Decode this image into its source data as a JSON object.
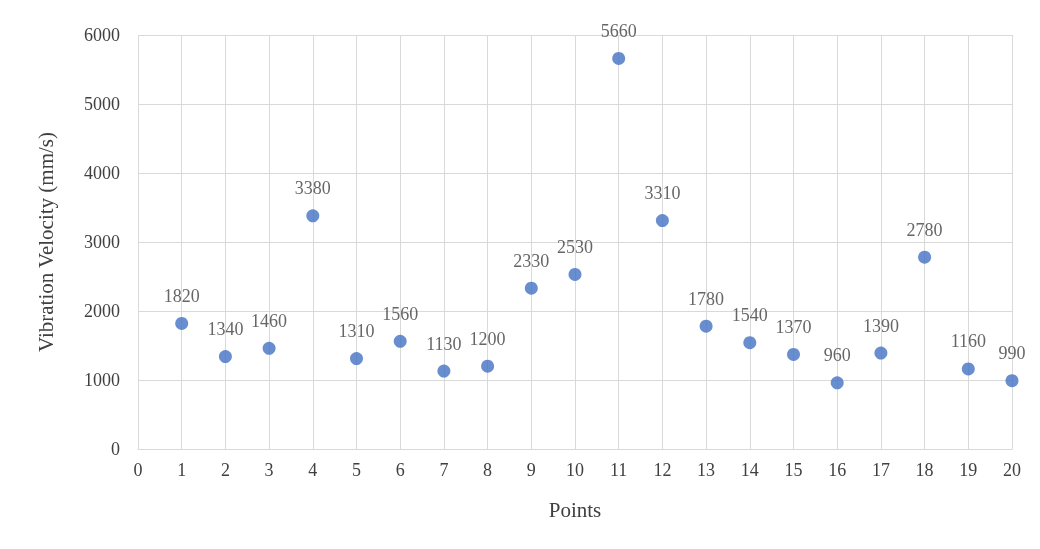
{
  "chart_data": {
    "type": "scatter",
    "xlabel": "Points",
    "ylabel": "Vibration Velocity (mm/s)",
    "x": [
      1,
      2,
      3,
      4,
      5,
      6,
      7,
      8,
      9,
      10,
      11,
      12,
      13,
      14,
      15,
      16,
      17,
      18,
      19,
      20
    ],
    "series": [
      {
        "color": "#4472c4",
        "values": [
          1820,
          1340,
          1460,
          3380,
          1310,
          1560,
          1130,
          1200,
          2330,
          2530,
          5660,
          3310,
          1780,
          1540,
          1370,
          960,
          1390,
          2780,
          1160,
          990
        ]
      }
    ],
    "xlim": [
      0,
      20
    ],
    "xticks": [
      0,
      1,
      2,
      3,
      4,
      5,
      6,
      7,
      8,
      9,
      10,
      11,
      12,
      13,
      14,
      15,
      16,
      17,
      18,
      19,
      20
    ],
    "ylim": [
      0,
      6000
    ],
    "yticks": [
      0,
      1000,
      2000,
      3000,
      4000,
      5000,
      6000
    ],
    "grid": true,
    "marker": "circle",
    "data_labels": true
  }
}
